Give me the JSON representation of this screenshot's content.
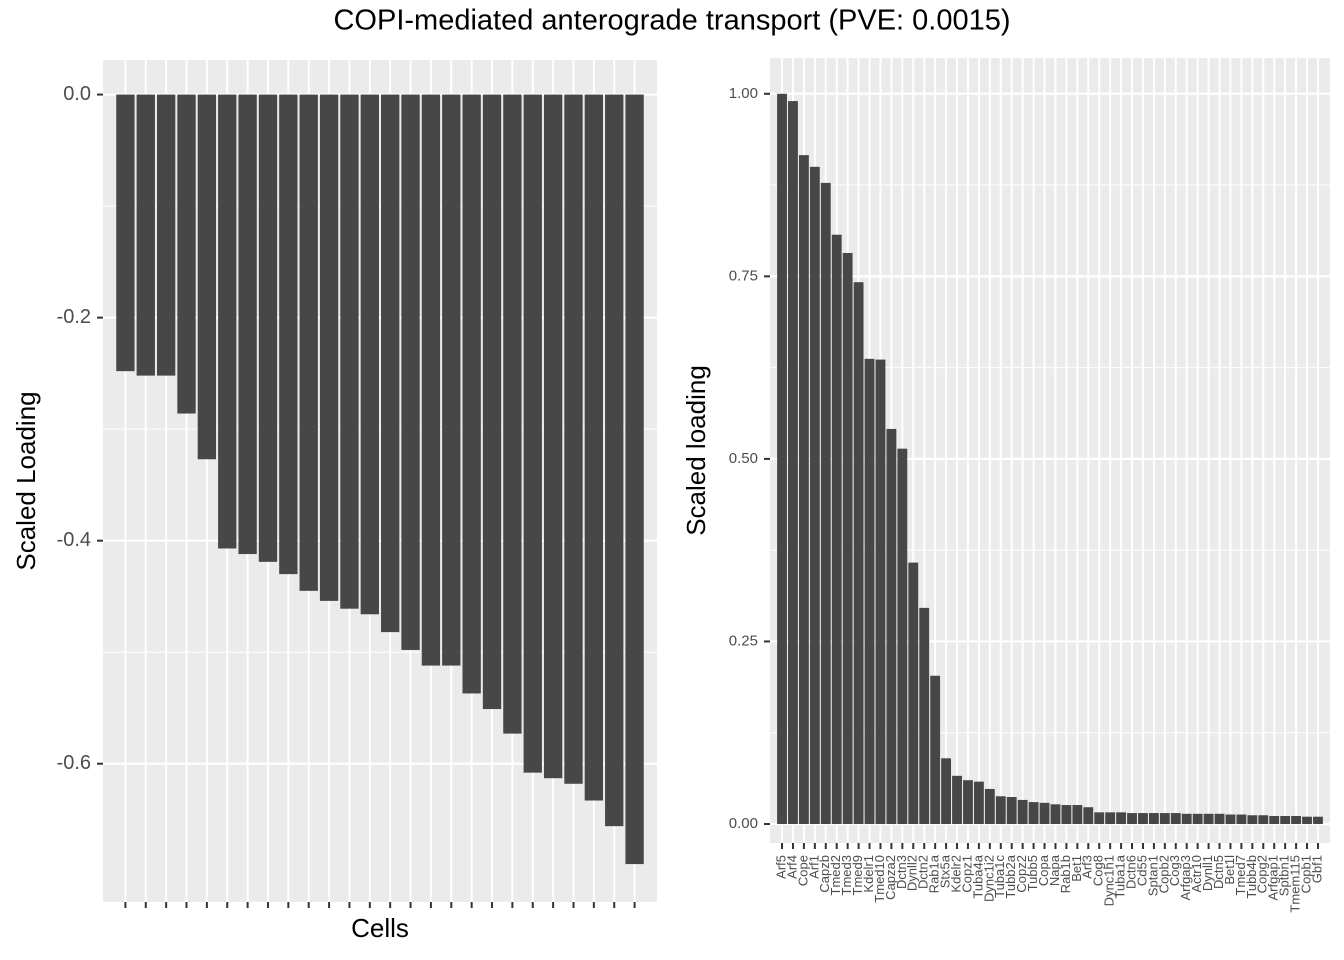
{
  "title": "COPI-mediated anterograde transport (PVE: 0.0015)",
  "chart_data": [
    {
      "type": "bar",
      "xlabel": "Cells",
      "ylabel": "Scaled Loading",
      "color": "#474747",
      "grid": true,
      "categories": [
        null,
        null,
        null,
        null,
        null,
        null,
        null,
        null,
        null,
        null,
        null,
        null,
        null,
        null,
        null,
        null,
        null,
        null,
        null,
        null,
        null,
        null,
        null,
        null,
        null,
        null
      ],
      "values": [
        -0.248,
        -0.252,
        -0.252,
        -0.286,
        -0.327,
        -0.407,
        -0.412,
        -0.419,
        -0.43,
        -0.445,
        -0.454,
        -0.461,
        -0.466,
        -0.482,
        -0.498,
        -0.512,
        -0.512,
        -0.537,
        -0.551,
        -0.573,
        -0.608,
        -0.613,
        -0.618,
        -0.633,
        -0.656,
        -0.69
      ],
      "ylim": [
        -0.724,
        0.031
      ],
      "yticks": [
        {
          "value": 0,
          "label": "0.0"
        },
        -0.2,
        -0.4,
        -0.6
      ]
    },
    {
      "type": "bar",
      "ylabel": "Scaled loading",
      "color": "#474747",
      "grid": true,
      "categories": [
        "Arf5",
        "Arf4",
        "Cope",
        "Arf1",
        "Capzb",
        "Tmed2",
        "Tmed3",
        "Tmed9",
        "Kdelr1",
        "Tmed10",
        "Capza2",
        "Dctn3",
        "Dynll2",
        "Dctn2",
        "Rab1a",
        "Stx5a",
        "Kdelr2",
        "Copz1",
        "Tuba4a",
        "Dync1i2",
        "Tuba1c",
        "Tubb2a",
        "Copz2",
        "Tubb5",
        "Copa",
        "Napa",
        "Rab1b",
        "Bet1",
        "Arf3",
        "Cog8",
        "Dync1h1",
        "Tuba1a",
        "Dctn6",
        "Cd55",
        "Sptan1",
        "Copb2",
        "Cog3",
        "Arfgap3",
        "Actr10",
        "Dynll1",
        "Dctn5",
        "Bet1l",
        "Tmed7",
        "Tubb4b",
        "Copg2",
        "Arfgap1",
        "Sptbn1",
        "Tmem115",
        "Copb1",
        "Gbf1"
      ],
      "values": [
        1.0,
        0.99,
        0.916,
        0.9,
        0.878,
        0.807,
        0.782,
        0.742,
        0.637,
        0.636,
        0.541,
        0.514,
        0.358,
        0.296,
        0.203,
        0.09,
        0.066,
        0.06,
        0.058,
        0.048,
        0.038,
        0.037,
        0.033,
        0.03,
        0.029,
        0.027,
        0.026,
        0.026,
        0.023,
        0.016,
        0.016,
        0.016,
        0.015,
        0.015,
        0.015,
        0.015,
        0.015,
        0.014,
        0.014,
        0.014,
        0.014,
        0.013,
        0.013,
        0.012,
        0.012,
        0.011,
        0.011,
        0.011,
        0.01,
        0.01
      ],
      "ylim": [
        -0.026,
        1.049
      ],
      "yticks": [
        {
          "value": 0,
          "label": "0.00"
        },
        {
          "value": 0.25,
          "label": "0.25"
        },
        {
          "value": 0.5,
          "label": "0.50"
        },
        {
          "value": 0.75,
          "label": "0.75"
        },
        {
          "value": 1,
          "label": "1.00"
        }
      ]
    }
  ]
}
